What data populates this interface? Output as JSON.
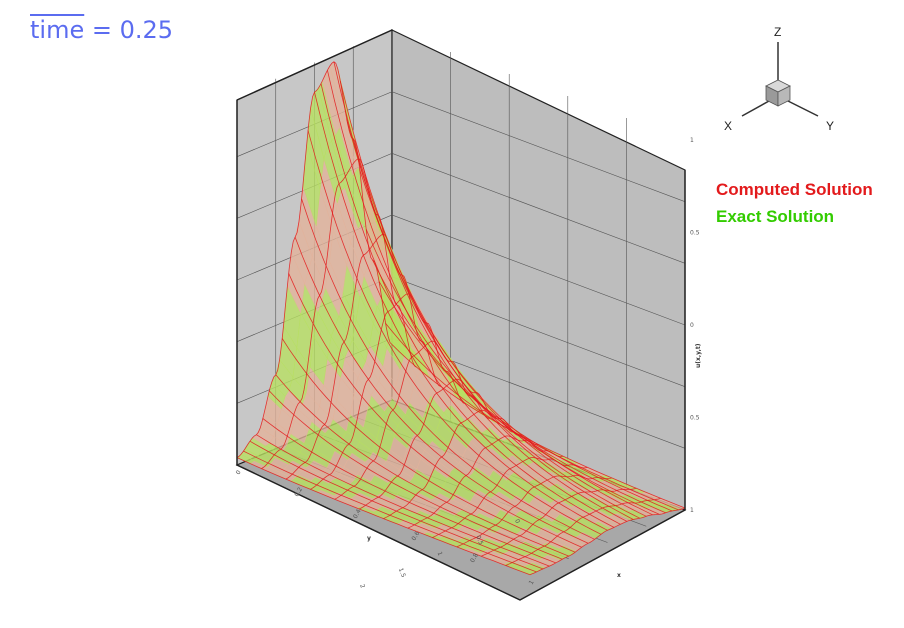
{
  "header": {
    "time_var": "time",
    "time_rest": " = 0.25"
  },
  "legend": {
    "computed": "Computed Solution",
    "exact": "Exact Solution"
  },
  "triad": {
    "x": "X",
    "y": "Y",
    "z": "Z"
  },
  "colors": {
    "computed": "#e31a1c",
    "exact": "#33cc00",
    "time_label": "#5b6cf0",
    "box_fill": "#c3c3c3"
  },
  "chart_data": {
    "type": "surface",
    "title": "",
    "xlabel": "x",
    "ylabel": "y",
    "zlabel": "u(x,y,t)",
    "x_ticks": [
      "0",
      "0.2",
      "0.4",
      "0.6",
      "0.8",
      "1"
    ],
    "y_ticks": [
      "0",
      "0.5",
      "1",
      "1.5",
      "2"
    ],
    "z_ticks": [
      "1",
      "0.5",
      "0",
      "0.5",
      "1"
    ],
    "xlim": [
      0,
      1
    ],
    "ylim": [
      0,
      2
    ],
    "zlim": [
      0,
      1
    ],
    "grid": true,
    "legend_position": "right",
    "series": [
      {
        "name": "Computed Solution",
        "color": "#e31a1c",
        "style": "mesh"
      },
      {
        "name": "Exact Solution",
        "color": "#33cc00",
        "style": "shaded"
      }
    ],
    "surface_profile": {
      "y": [
        0,
        0.25,
        0.5,
        0.75,
        1,
        1.25,
        1.5,
        1.75,
        2
      ],
      "u_at_x0": [
        0.15,
        0.4,
        0.75,
        0.98,
        0.92,
        0.55,
        0.2,
        0.06,
        0.02
      ]
    }
  }
}
